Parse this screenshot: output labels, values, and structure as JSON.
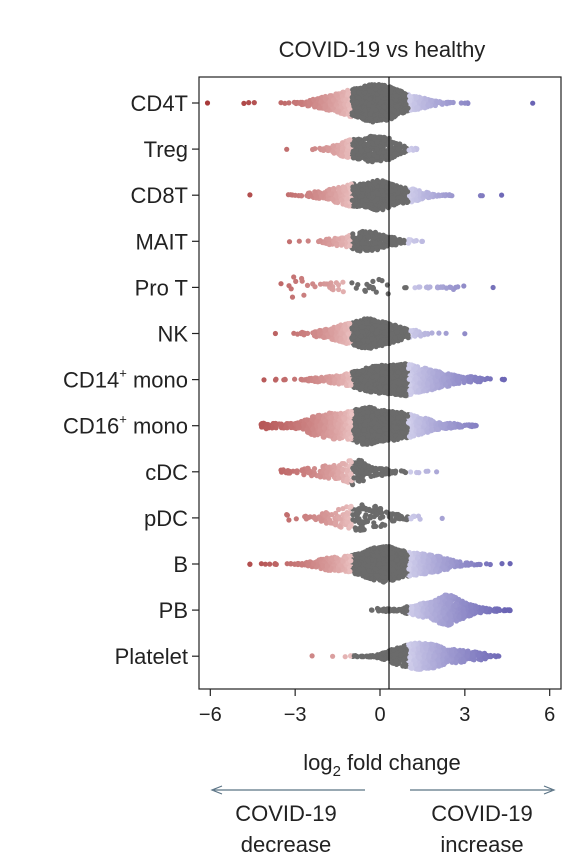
{
  "chart_data": {
    "type": "scatter",
    "subtype": "beeswarm",
    "title": "COVID-19 vs healthy",
    "xlabel_main": "log",
    "xlabel_sub": "2",
    "xlabel_rest": " fold change",
    "xlim": [
      -6.4,
      6.4
    ],
    "xticks": [
      -6,
      -3,
      0,
      3,
      6
    ],
    "xtick_labels": [
      "−6",
      "−3",
      "0",
      "3",
      "6"
    ],
    "grid": false,
    "colors": {
      "decrease": "#a83a3a",
      "neutral": "#6b6b6b",
      "increase": "#6a64b4",
      "axis": "#222222",
      "arrow": "#5a7385"
    },
    "significance_threshold": 1,
    "categories": [
      {
        "label": "CD4T",
        "sup": "",
        "suffix": "",
        "n": 1400,
        "mean": -0.2,
        "sd": 1.1,
        "min": -6.1,
        "max": 5.4,
        "thickness": 1.0
      },
      {
        "label": "Treg",
        "sup": "",
        "suffix": "",
        "n": 400,
        "mean": -0.3,
        "sd": 0.75,
        "min": -3.3,
        "max": 1.3,
        "thickness": 0.7
      },
      {
        "label": "CD8T",
        "sup": "",
        "suffix": "",
        "n": 900,
        "mean": -0.2,
        "sd": 1.0,
        "min": -4.6,
        "max": 4.3,
        "thickness": 0.8
      },
      {
        "label": "MAIT",
        "sup": "",
        "suffix": "",
        "n": 300,
        "mean": -0.5,
        "sd": 0.75,
        "min": -3.2,
        "max": 1.5,
        "thickness": 0.55
      },
      {
        "label": "Pro T",
        "sup": "",
        "suffix": "",
        "n": 70,
        "mean": 0.0,
        "sd": 2.2,
        "min": -3.5,
        "max": 4.0,
        "thickness": 0.55,
        "bimodal": true
      },
      {
        "label": "NK",
        "sup": "",
        "suffix": "",
        "n": 700,
        "mean": -0.5,
        "sd": 0.9,
        "min": -3.7,
        "max": 3.0,
        "thickness": 0.8
      },
      {
        "label": "CD14",
        "sup": "+",
        "suffix": " mono",
        "n": 1300,
        "mean": 0.6,
        "sd": 1.3,
        "min": -4.1,
        "max": 4.4,
        "thickness": 0.85
      },
      {
        "label": "CD16",
        "sup": "+",
        "suffix": " mono",
        "n": 1500,
        "mean": -0.4,
        "sd": 1.5,
        "min": -4.2,
        "max": 3.4,
        "thickness": 1.0
      },
      {
        "label": "cDC",
        "sup": "",
        "suffix": "",
        "n": 250,
        "mean": -1.1,
        "sd": 1.1,
        "min": -3.5,
        "max": 2.0,
        "thickness": 0.7
      },
      {
        "label": "pDC",
        "sup": "",
        "suffix": "",
        "n": 180,
        "mean": -0.8,
        "sd": 1.0,
        "min": -3.3,
        "max": 2.2,
        "thickness": 0.7
      },
      {
        "label": "B",
        "sup": "",
        "suffix": "",
        "n": 1400,
        "mean": 0.2,
        "sd": 1.4,
        "min": -4.6,
        "max": 4.6,
        "thickness": 0.95
      },
      {
        "label": "PB",
        "sup": "",
        "suffix": "",
        "n": 600,
        "mean": 2.3,
        "sd": 0.9,
        "min": -0.3,
        "max": 4.6,
        "thickness": 0.8
      },
      {
        "label": "Platelet",
        "sup": "",
        "suffix": "",
        "n": 700,
        "mean": 1.6,
        "sd": 1.0,
        "min": -2.4,
        "max": 4.2,
        "thickness": 0.7
      }
    ],
    "annotations": {
      "left_line1": "COVID-19",
      "left_line2": "decrease",
      "right_line1": "COVID-19",
      "right_line2": "increase"
    }
  }
}
